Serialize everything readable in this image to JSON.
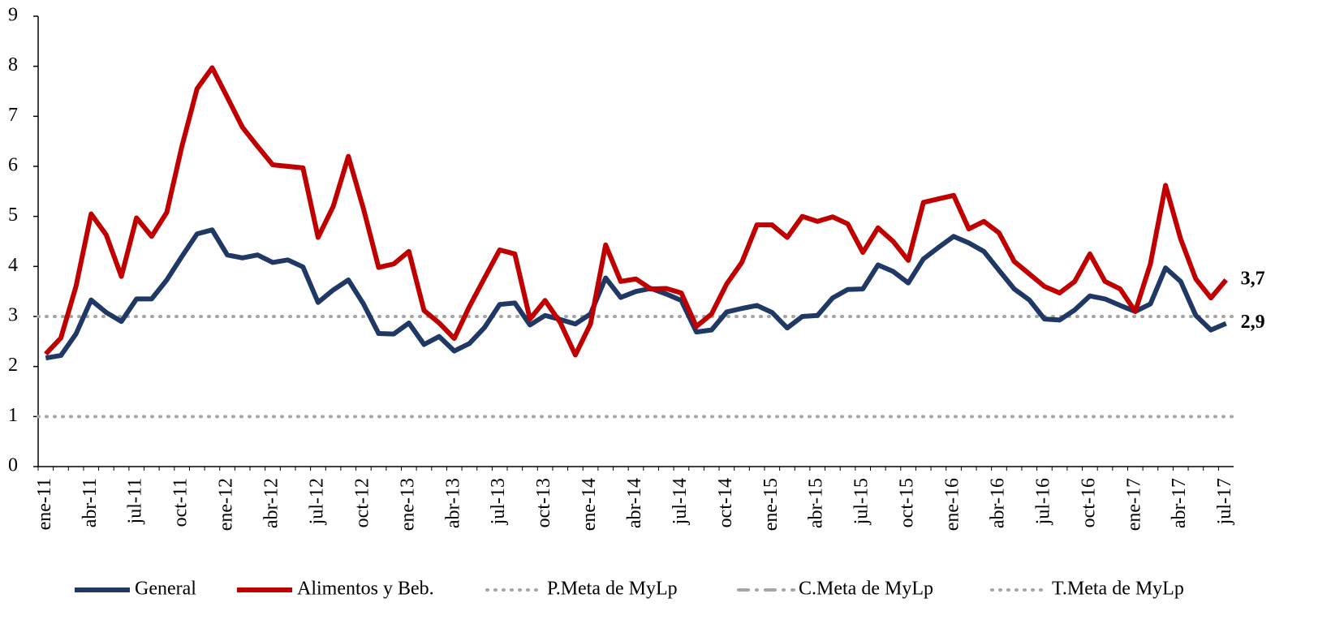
{
  "chart_data": {
    "type": "line",
    "categories": [
      "ene-11",
      null,
      null,
      "abr-11",
      null,
      null,
      "jul-11",
      null,
      null,
      "oct-11",
      null,
      null,
      "ene-12",
      null,
      null,
      "abr-12",
      null,
      null,
      "jul-12",
      null,
      null,
      "oct-12",
      null,
      null,
      "ene-13",
      null,
      null,
      "abr-13",
      null,
      null,
      "jul-13",
      null,
      null,
      "oct-13",
      null,
      null,
      "ene-14",
      null,
      null,
      "abr-14",
      null,
      null,
      "jul-14",
      null,
      null,
      "oct-14",
      null,
      null,
      "ene-15",
      null,
      null,
      "abr-15",
      null,
      null,
      "jul-15",
      null,
      null,
      "oct-15",
      null,
      null,
      "ene-16",
      null,
      null,
      "abr-16",
      null,
      null,
      "jul-16",
      null,
      null,
      "oct-16",
      null,
      null,
      "ene-17",
      null,
      null,
      "abr-17",
      null,
      null,
      "jul-17"
    ],
    "series": [
      {
        "name": "General",
        "color": "#1f3864",
        "values": [
          2.17,
          2.22,
          2.65,
          3.33,
          3.08,
          2.9,
          3.35,
          3.35,
          3.73,
          4.2,
          4.65,
          4.73,
          4.23,
          4.17,
          4.23,
          4.08,
          4.13,
          3.99,
          3.28,
          3.53,
          3.73,
          3.25,
          2.66,
          2.65,
          2.87,
          2.44,
          2.6,
          2.31,
          2.46,
          2.78,
          3.24,
          3.27,
          2.83,
          3.02,
          2.94,
          2.85,
          3.05,
          3.77,
          3.38,
          3.5,
          3.56,
          3.45,
          3.32,
          2.69,
          2.73,
          3.09,
          3.16,
          3.22,
          3.08,
          2.77,
          3.0,
          3.02,
          3.37,
          3.54,
          3.55,
          4.03,
          3.9,
          3.67,
          4.15,
          4.38,
          4.6,
          4.47,
          4.3,
          3.92,
          3.55,
          3.33,
          2.95,
          2.93,
          3.13,
          3.41,
          3.35,
          3.22,
          3.1,
          3.25,
          3.97,
          3.7,
          3.02,
          2.73,
          2.86
        ],
        "value_labels": [
          null,
          null,
          null,
          null,
          null,
          null,
          null,
          null,
          null,
          null,
          null,
          null,
          null,
          null,
          null,
          null,
          null,
          null,
          null,
          null,
          null,
          null,
          null,
          null,
          null,
          null,
          null,
          null,
          null,
          null,
          null,
          null,
          null,
          null,
          null,
          null,
          null,
          null,
          null,
          null,
          null,
          null,
          null,
          null,
          null,
          null,
          null,
          null,
          null,
          null,
          null,
          null,
          null,
          null,
          null,
          null,
          null,
          null,
          null,
          null,
          null,
          null,
          null,
          null,
          null,
          null,
          null,
          null,
          null,
          null,
          null,
          null,
          null,
          null,
          null,
          null,
          null,
          null,
          "2,9"
        ]
      },
      {
        "name": "Alimentos y Beb.",
        "color": "#c00000",
        "values": [
          2.25,
          2.57,
          3.6,
          5.05,
          4.63,
          3.8,
          4.97,
          4.6,
          5.08,
          6.4,
          7.55,
          7.97,
          7.38,
          6.78,
          6.4,
          6.03,
          6.0,
          5.97,
          4.58,
          5.2,
          6.2,
          5.15,
          3.98,
          4.05,
          4.3,
          3.12,
          2.87,
          2.56,
          3.2,
          3.77,
          4.33,
          4.25,
          2.95,
          3.32,
          2.88,
          2.23,
          2.85,
          4.43,
          3.7,
          3.75,
          3.55,
          3.56,
          3.47,
          2.8,
          3.05,
          3.65,
          4.08,
          4.83,
          4.83,
          4.58,
          5.0,
          4.9,
          4.99,
          4.85,
          4.28,
          4.77,
          4.5,
          4.12,
          5.28,
          5.35,
          5.42,
          4.75,
          4.9,
          4.67,
          4.1,
          3.85,
          3.6,
          3.47,
          3.7,
          4.25,
          3.7,
          3.55,
          3.1,
          4.05,
          5.62,
          4.55,
          3.75,
          3.37,
          3.73
        ],
        "value_labels": [
          null,
          null,
          null,
          null,
          null,
          null,
          null,
          null,
          null,
          null,
          null,
          null,
          null,
          null,
          null,
          null,
          null,
          null,
          null,
          null,
          null,
          null,
          null,
          null,
          null,
          null,
          null,
          null,
          null,
          null,
          null,
          null,
          null,
          null,
          null,
          null,
          null,
          null,
          null,
          null,
          null,
          null,
          null,
          null,
          null,
          null,
          null,
          null,
          null,
          null,
          null,
          null,
          null,
          null,
          null,
          null,
          null,
          null,
          null,
          null,
          null,
          null,
          null,
          null,
          null,
          null,
          null,
          null,
          null,
          null,
          null,
          null,
          null,
          null,
          null,
          null,
          null,
          null,
          "3,7"
        ]
      }
    ],
    "reference_lines": [
      {
        "name": "P.Meta de MyLp",
        "value": 3,
        "color": "#a6a6a6",
        "style": "dotted"
      },
      {
        "name": "C.Meta de MyLp",
        "color": "#a6a6a6",
        "style": "dashdot"
      },
      {
        "name": "T.Meta de MyLp",
        "value": 1,
        "color": "#a6a6a6",
        "style": "dotted"
      }
    ],
    "ylim": [
      0,
      9
    ],
    "yticks": [
      0,
      1,
      2,
      3,
      4,
      5,
      6,
      7,
      8,
      9
    ],
    "grid": false,
    "legend": "bottom"
  }
}
